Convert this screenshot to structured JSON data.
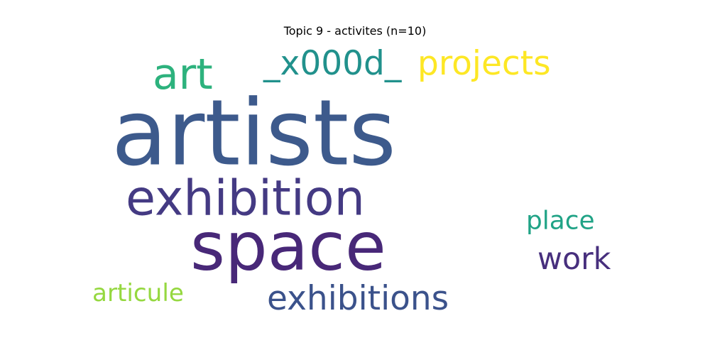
{
  "chart_data": {
    "type": "wordcloud",
    "title": "Topic 9 - activites (n=10)",
    "words": [
      {
        "text": "artists",
        "weight": 1.0,
        "color": "#3d5a8c"
      },
      {
        "text": "space",
        "weight": 0.86,
        "color": "#482878"
      },
      {
        "text": "exhibition",
        "weight": 0.64,
        "color": "#443a83"
      },
      {
        "text": "art",
        "weight": 0.56,
        "color": "#2db27d"
      },
      {
        "text": "_x000d_",
        "weight": 0.44,
        "color": "#21918c"
      },
      {
        "text": "projects",
        "weight": 0.44,
        "color": "#fde725"
      },
      {
        "text": "exhibitions",
        "weight": 0.44,
        "color": "#3b528b"
      },
      {
        "text": "work",
        "weight": 0.4,
        "color": "#472f7d"
      },
      {
        "text": "articule",
        "weight": 0.34,
        "color": "#95d840"
      },
      {
        "text": "place",
        "weight": 0.32,
        "color": "#20a386"
      }
    ]
  }
}
